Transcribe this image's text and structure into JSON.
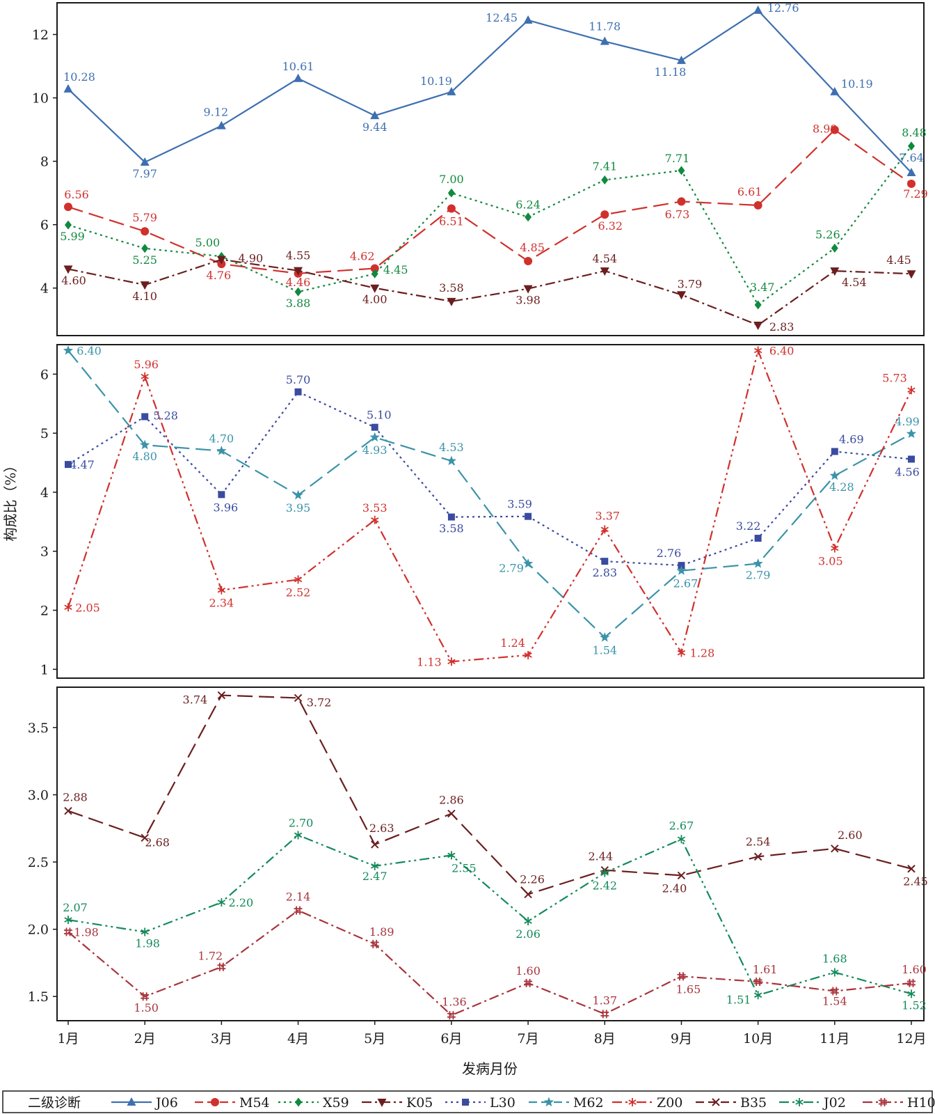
{
  "x_axis_label": "发病月份",
  "y_axis_label": "构成比（%）",
  "legend_title": "二级诊断",
  "chart_data": {
    "type": "line",
    "categories": [
      "1月",
      "2月",
      "3月",
      "4月",
      "5月",
      "6月",
      "7月",
      "8月",
      "9月",
      "10月",
      "11月",
      "12月"
    ],
    "xlabel": "发病月份",
    "ylabel": "构成比（%）",
    "legend": {
      "title": "二级诊断",
      "placement": "bottom",
      "entries": [
        "J06",
        "M54",
        "X59",
        "K05",
        "L30",
        "M62",
        "Z00",
        "B35",
        "J02",
        "H10"
      ]
    },
    "panels": [
      {
        "ylim": [
          2.5,
          13.0
        ],
        "yticks": [
          4,
          6,
          8,
          10,
          12
        ],
        "series": [
          {
            "name": "J06",
            "color": "#3e6fb0",
            "marker": "triangle-up",
            "dash": "solid",
            "values": [
              10.28,
              7.97,
              9.12,
              10.61,
              9.44,
              10.19,
              12.45,
              11.78,
              11.18,
              12.76,
              10.19,
              7.64
            ]
          },
          {
            "name": "M54",
            "color": "#d0312d",
            "marker": "circle",
            "dash": "long-dash",
            "values": [
              6.56,
              5.79,
              4.76,
              4.46,
              4.62,
              6.51,
              4.85,
              6.32,
              6.73,
              6.61,
              8.99,
              7.29
            ]
          },
          {
            "name": "X59",
            "color": "#11893e",
            "marker": "diamond",
            "dash": "dotted",
            "values": [
              5.99,
              5.25,
              5.0,
              3.88,
              4.45,
              7.0,
              6.24,
              7.41,
              7.71,
              3.47,
              5.26,
              8.48
            ]
          },
          {
            "name": "K05",
            "color": "#6b1e1e",
            "marker": "triangle-down",
            "dash": "dash-dot",
            "values": [
              4.6,
              4.1,
              4.9,
              4.55,
              4.0,
              3.58,
              3.98,
              4.54,
              3.79,
              2.83,
              4.54,
              4.45
            ]
          }
        ]
      },
      {
        "ylim": [
          0.85,
          6.5
        ],
        "yticks": [
          1,
          2,
          3,
          4,
          5,
          6
        ],
        "series": [
          {
            "name": "L30",
            "color": "#3a4ba0",
            "marker": "square",
            "dash": "dotted",
            "values": [
              4.47,
              5.28,
              3.96,
              5.7,
              5.1,
              3.58,
              3.59,
              2.83,
              2.76,
              3.22,
              4.69,
              4.56
            ]
          },
          {
            "name": "M62",
            "color": "#3a93a8",
            "marker": "star",
            "dash": "long-dash",
            "values": [
              6.4,
              4.8,
              4.7,
              3.95,
              4.93,
              4.53,
              2.79,
              1.54,
              2.67,
              2.79,
              4.28,
              4.99
            ]
          },
          {
            "name": "Z00",
            "color": "#d0312d",
            "marker": "asterisk",
            "dash": "dash-dot-dot",
            "values": [
              2.05,
              5.96,
              2.34,
              2.52,
              3.53,
              1.13,
              1.24,
              3.37,
              1.28,
              6.4,
              3.05,
              5.73
            ]
          }
        ]
      },
      {
        "ylim": [
          1.32,
          3.8
        ],
        "yticks": [
          1.5,
          2.0,
          2.5,
          3.0,
          3.5
        ],
        "tick_labels": [
          "1.5",
          "2.0",
          "2.5",
          "3.0",
          "3.5"
        ],
        "series": [
          {
            "name": "B35",
            "color": "#6b1e1e",
            "marker": "x",
            "dash": "long-dash",
            "values": [
              2.88,
              2.68,
              3.74,
              3.72,
              2.63,
              2.86,
              2.26,
              2.44,
              2.4,
              2.54,
              2.6,
              2.45
            ]
          },
          {
            "name": "J02",
            "color": "#138a5a",
            "marker": "asterisk",
            "dash": "dash-dot-dot",
            "values": [
              2.07,
              1.98,
              2.2,
              2.7,
              2.47,
              2.55,
              2.06,
              2.42,
              2.67,
              1.51,
              1.68,
              1.52
            ]
          },
          {
            "name": "H10",
            "color": "#a8343c",
            "marker": "hash",
            "dash": "dash-dot",
            "values": [
              1.98,
              1.5,
              1.72,
              2.14,
              1.89,
              1.36,
              1.6,
              1.37,
              1.65,
              1.61,
              1.54,
              1.6
            ]
          }
        ]
      }
    ]
  }
}
